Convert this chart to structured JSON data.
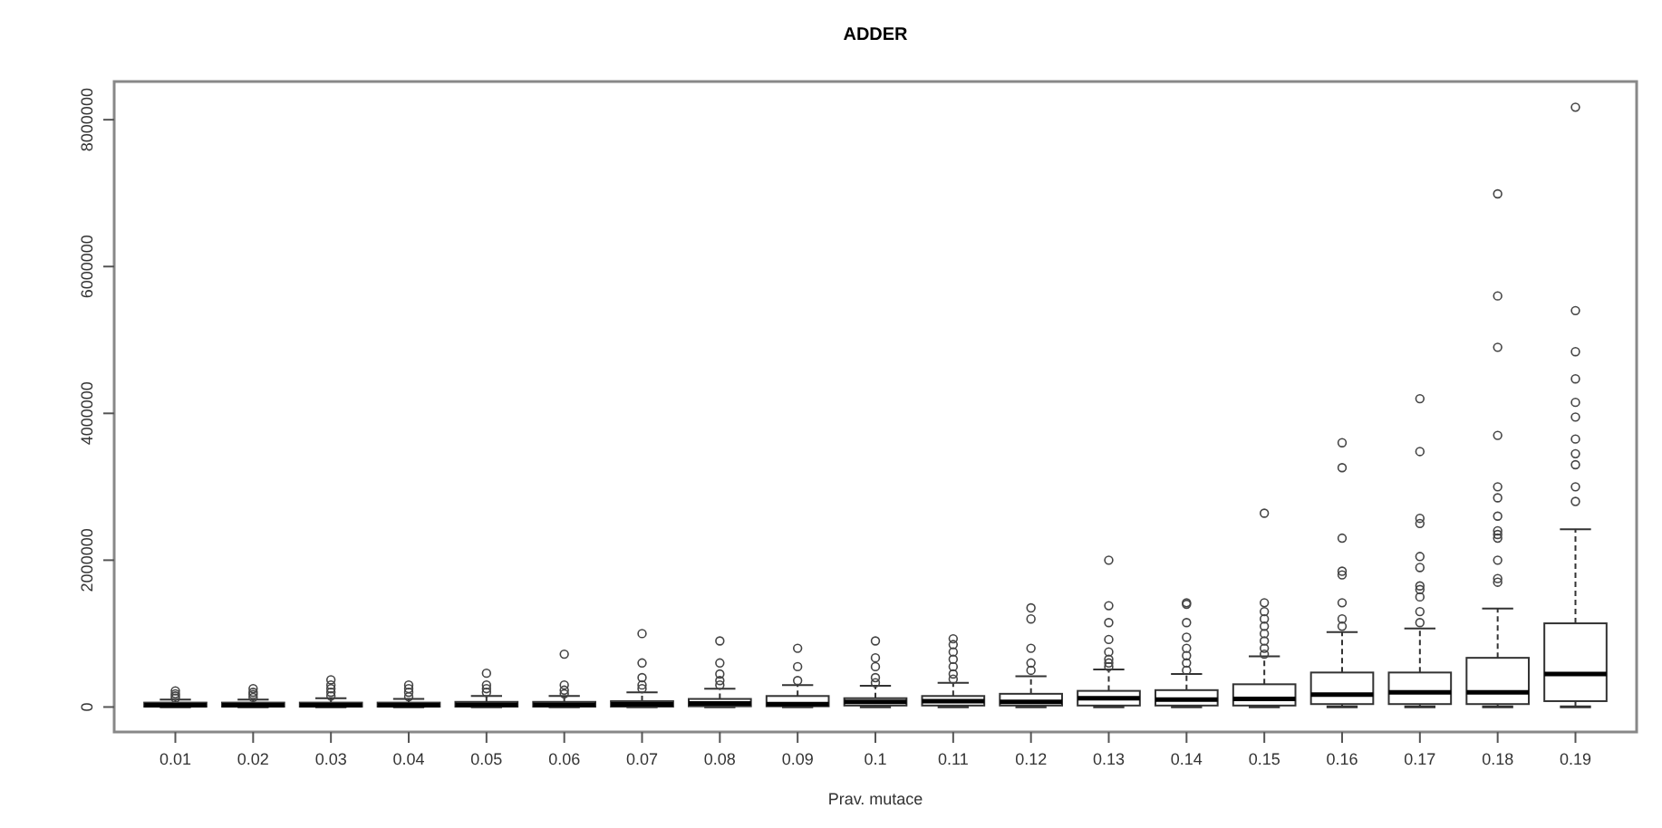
{
  "chart_data": {
    "type": "box",
    "title": "ADDER",
    "xlabel": "Prav. mutace",
    "categories": [
      "0.01",
      "0.02",
      "0.03",
      "0.04",
      "0.05",
      "0.06",
      "0.07",
      "0.08",
      "0.09",
      "0.1",
      "0.11",
      "0.12",
      "0.13",
      "0.14",
      "0.15",
      "0.16",
      "0.17",
      "0.18",
      "0.19"
    ],
    "ylim": [
      -340000,
      8520000
    ],
    "yticks": [
      0,
      2000000,
      4000000,
      6000000,
      8000000
    ],
    "grid": false,
    "boxes": [
      {
        "low": 2000,
        "q1": 5000,
        "median": 25000,
        "q3": 60000,
        "high": 100000,
        "outliers": [
          120000,
          150000,
          180000,
          220000
        ]
      },
      {
        "low": 2000,
        "q1": 5000,
        "median": 25000,
        "q3": 60000,
        "high": 100000,
        "outliers": [
          130000,
          170000,
          200000,
          250000
        ]
      },
      {
        "low": 2000,
        "q1": 5000,
        "median": 25000,
        "q3": 60000,
        "high": 120000,
        "outliers": [
          150000,
          200000,
          250000,
          300000,
          370000
        ]
      },
      {
        "low": 2000,
        "q1": 5000,
        "median": 25000,
        "q3": 60000,
        "high": 110000,
        "outliers": [
          140000,
          200000,
          250000,
          300000
        ]
      },
      {
        "low": 2000,
        "q1": 5000,
        "median": 30000,
        "q3": 70000,
        "high": 150000,
        "outliers": [
          200000,
          250000,
          300000,
          460000
        ]
      },
      {
        "low": 2000,
        "q1": 5000,
        "median": 30000,
        "q3": 70000,
        "high": 150000,
        "outliers": [
          180000,
          230000,
          300000,
          720000
        ]
      },
      {
        "low": 2000,
        "q1": 5000,
        "median": 35000,
        "q3": 80000,
        "high": 200000,
        "outliers": [
          250000,
          300000,
          400000,
          600000,
          1000000
        ]
      },
      {
        "low": 2000,
        "q1": 10000,
        "median": 50000,
        "q3": 110000,
        "high": 250000,
        "outliers": [
          300000,
          360000,
          450000,
          600000,
          900000
        ]
      },
      {
        "low": 2000,
        "q1": 10000,
        "median": 40000,
        "q3": 150000,
        "high": 300000,
        "outliers": [
          360000,
          550000,
          800000
        ]
      },
      {
        "low": 2000,
        "q1": 20000,
        "median": 70000,
        "q3": 120000,
        "high": 290000,
        "outliers": [
          330000,
          400000,
          550000,
          670000,
          900000
        ]
      },
      {
        "low": 2000,
        "q1": 20000,
        "median": 80000,
        "q3": 150000,
        "high": 330000,
        "outliers": [
          380000,
          450000,
          550000,
          650000,
          750000,
          850000,
          930000
        ]
      },
      {
        "low": 2000,
        "q1": 20000,
        "median": 70000,
        "q3": 180000,
        "high": 420000,
        "outliers": [
          500000,
          600000,
          800000,
          1200000,
          1350000
        ]
      },
      {
        "low": 2000,
        "q1": 20000,
        "median": 120000,
        "q3": 220000,
        "high": 510000,
        "outliers": [
          550000,
          600000,
          650000,
          750000,
          920000,
          1150000,
          1380000,
          2000000
        ]
      },
      {
        "low": 2000,
        "q1": 20000,
        "median": 100000,
        "q3": 230000,
        "high": 450000,
        "outliers": [
          500000,
          600000,
          700000,
          800000,
          950000,
          1150000,
          1400000,
          1420000
        ]
      },
      {
        "low": 2000,
        "q1": 20000,
        "median": 110000,
        "q3": 310000,
        "high": 690000,
        "outliers": [
          720000,
          800000,
          900000,
          1000000,
          1100000,
          1200000,
          1300000,
          1420000,
          2640000
        ]
      },
      {
        "low": 2000,
        "q1": 40000,
        "median": 170000,
        "q3": 470000,
        "high": 1020000,
        "outliers": [
          1100000,
          1200000,
          1420000,
          1800000,
          1850000,
          2300000,
          3260000,
          3600000
        ]
      },
      {
        "low": 2000,
        "q1": 40000,
        "median": 200000,
        "q3": 470000,
        "high": 1070000,
        "outliers": [
          1150000,
          1300000,
          1500000,
          1600000,
          1650000,
          1900000,
          2050000,
          2500000,
          2570000,
          3480000,
          4200000
        ]
      },
      {
        "low": 2000,
        "q1": 40000,
        "median": 200000,
        "q3": 670000,
        "high": 1340000,
        "outliers": [
          1700000,
          1750000,
          2000000,
          2300000,
          2350000,
          2400000,
          2600000,
          2850000,
          3000000,
          3700000,
          4900000,
          5600000,
          6990000
        ]
      },
      {
        "low": 2000,
        "q1": 80000,
        "median": 450000,
        "q3": 1140000,
        "high": 2420000,
        "outliers": [
          2800000,
          3000000,
          3300000,
          3450000,
          3650000,
          3950000,
          4150000,
          4470000,
          4840000,
          5400000,
          8170000
        ]
      }
    ]
  }
}
